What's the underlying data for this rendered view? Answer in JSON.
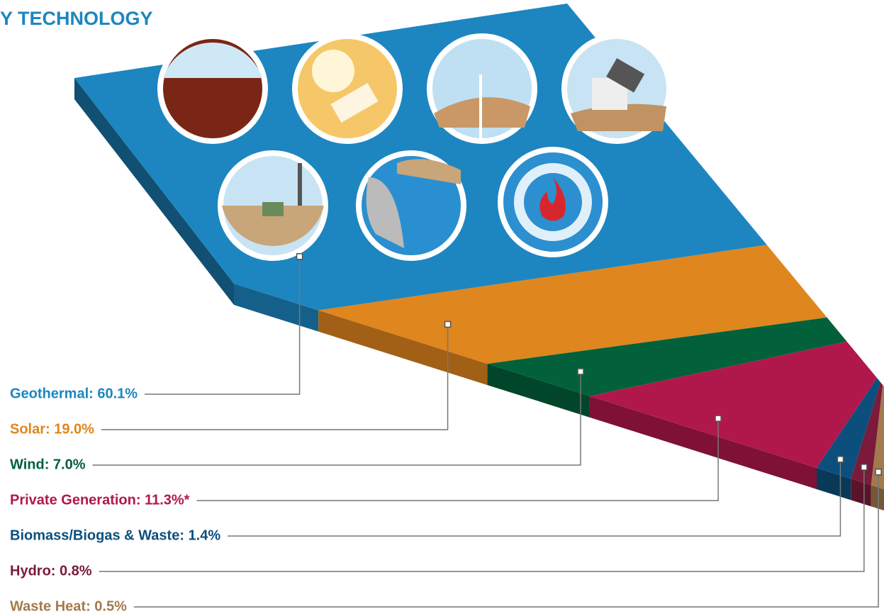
{
  "chart_data": {
    "type": "slab",
    "title": "Y TECHNOLOGY",
    "categories": [
      "Geothermal: 60.1%",
      "Solar: 19.0%",
      "Wind: 7.0%",
      "Private Generation: 11.3%*",
      "Biomass/Biogas & Waste: 1.4%",
      "Hydro: 0.8%",
      "Waste Heat: 0.5%"
    ],
    "values": [
      60.1,
      19.0,
      7.0,
      11.3,
      1.4,
      0.8,
      0.5
    ],
    "colors": [
      "#1d86c0",
      "#df861e",
      "#02613a",
      "#b0184b",
      "#0d4f7c",
      "#7b1a3a",
      "#a37a4c"
    ]
  }
}
